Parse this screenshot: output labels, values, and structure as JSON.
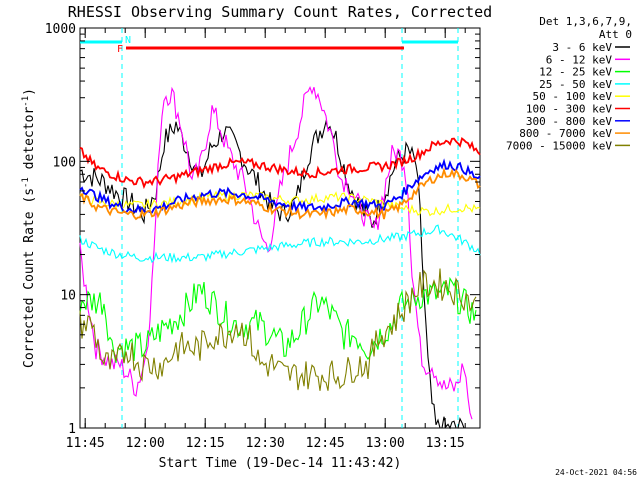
{
  "chart_data": {
    "type": "line",
    "title": "RHESSI Observing Summary Count Rates, Corrected",
    "xlabel": "Start Time (19-Dec-14 11:43:42)",
    "ylabel_prefix": "Corrected Count Rate (s",
    "ylabel_sup1": "-1",
    "ylabel_mid": " detector",
    "ylabel_sup2": "-1",
    "ylabel_suffix": ")",
    "x_unit": "minutes since 11:43:42",
    "xlim": [
      0,
      100
    ],
    "yscale": "log",
    "ylim": [
      1,
      1000
    ],
    "x_ticks": [
      {
        "pos": 1.3,
        "label": "11:45"
      },
      {
        "pos": 16.3,
        "label": "12:00"
      },
      {
        "pos": 31.3,
        "label": "12:15"
      },
      {
        "pos": 46.3,
        "label": "12:30"
      },
      {
        "pos": 61.3,
        "label": "12:45"
      },
      {
        "pos": 76.3,
        "label": "13:00"
      },
      {
        "pos": 91.3,
        "label": "13:15"
      }
    ],
    "y_ticks": [
      {
        "value": 1,
        "label": "1"
      },
      {
        "value": 10,
        "label": "10"
      },
      {
        "value": 100,
        "label": "100"
      },
      {
        "value": 1000,
        "label": "1000"
      }
    ],
    "legend": {
      "header1": "Det 1,3,6,7,9,",
      "header2": "Att 0",
      "placement": "right, outside plot"
    },
    "series": [
      {
        "name": "3 - 6 keV",
        "color": "#000000",
        "x": [
          0,
          6,
          10,
          13,
          16,
          19,
          21,
          24,
          27,
          30,
          33,
          36,
          39,
          42,
          45,
          48,
          51,
          54,
          57,
          60,
          62,
          64,
          67,
          70,
          73,
          76,
          79,
          82,
          84,
          85,
          86,
          87,
          88,
          89,
          91,
          93,
          95,
          97
        ],
        "y": [
          85,
          70,
          55,
          48,
          40,
          60,
          140,
          190,
          120,
          75,
          130,
          170,
          130,
          90,
          65,
          45,
          40,
          50,
          110,
          170,
          210,
          150,
          70,
          45,
          35,
          55,
          100,
          120,
          95,
          40,
          10,
          3,
          1.5,
          1,
          1,
          1,
          1,
          1
        ]
      },
      {
        "name": "6 - 12 keV",
        "color": "#ff00ff",
        "x": [
          0,
          4,
          8,
          10,
          12,
          14,
          16,
          17,
          18,
          19,
          20,
          21,
          23,
          25,
          27,
          28,
          30,
          33,
          35,
          37,
          39,
          41,
          43,
          45,
          47,
          48,
          49,
          50,
          52,
          54,
          56,
          58,
          60,
          62,
          64,
          65,
          67,
          69,
          71,
          73,
          74,
          76,
          78,
          79,
          81,
          82,
          83,
          84,
          85,
          86,
          88,
          91,
          94,
          96,
          98
        ],
        "y": [
          20,
          4,
          3,
          3,
          2.5,
          2,
          3,
          5,
          12,
          40,
          160,
          320,
          320,
          200,
          110,
          70,
          90,
          240,
          180,
          120,
          90,
          70,
          45,
          28,
          22,
          30,
          40,
          60,
          100,
          160,
          260,
          390,
          300,
          190,
          120,
          75,
          70,
          50,
          40,
          30,
          32,
          60,
          110,
          120,
          100,
          60,
          15,
          8,
          4,
          3,
          3,
          2,
          2,
          3,
          1
        ]
      },
      {
        "name": "12 - 25 keV",
        "color": "#00ff00",
        "x": [
          0,
          3,
          6,
          8,
          10,
          13,
          16,
          19,
          22,
          25,
          28,
          30,
          33,
          36,
          39,
          42,
          45,
          48,
          51,
          54,
          57,
          60,
          63,
          66,
          69,
          72,
          75,
          78,
          80,
          83,
          85,
          88,
          91,
          93,
          95,
          97,
          99
        ],
        "y": [
          9,
          9,
          9,
          4,
          4,
          4,
          4,
          5,
          6,
          7,
          9,
          11,
          9,
          7,
          6,
          6,
          6,
          5,
          4,
          5,
          7,
          9,
          7,
          5,
          5,
          4,
          5,
          6,
          8,
          9,
          10,
          10,
          10,
          11,
          9,
          8,
          7
        ]
      },
      {
        "name": "25 - 50 keV",
        "color": "#00ffff",
        "x": [
          0,
          5,
          10,
          15,
          20,
          25,
          30,
          35,
          40,
          45,
          50,
          55,
          60,
          65,
          70,
          75,
          80,
          85,
          90,
          95,
          100
        ],
        "y": [
          26,
          22,
          20,
          19,
          19,
          19,
          19,
          20,
          21,
          22,
          23,
          24,
          25,
          25,
          25,
          26,
          27,
          29,
          31,
          26,
          21
        ]
      },
      {
        "name": "50 - 100 keV",
        "color": "#ffff00",
        "x": [
          0,
          4,
          8,
          12,
          16,
          20,
          24,
          28,
          32,
          36,
          40,
          44,
          48,
          52,
          56,
          60,
          64,
          68,
          72,
          76,
          80,
          84,
          88,
          92,
          96,
          100
        ],
        "y": [
          55,
          50,
          48,
          47,
          47,
          48,
          50,
          52,
          54,
          55,
          56,
          55,
          53,
          51,
          51,
          53,
          54,
          53,
          51,
          48,
          45,
          43,
          42,
          44,
          45,
          43
        ]
      },
      {
        "name": "100 - 300 keV",
        "color": "#ff0000",
        "x": [
          0,
          4,
          8,
          12,
          16,
          20,
          24,
          28,
          32,
          36,
          40,
          44,
          48,
          52,
          56,
          60,
          64,
          68,
          72,
          76,
          80,
          84,
          88,
          92,
          96,
          100
        ],
        "y": [
          120,
          90,
          80,
          72,
          70,
          72,
          76,
          82,
          88,
          95,
          98,
          95,
          90,
          85,
          82,
          82,
          86,
          88,
          90,
          92,
          98,
          110,
          130,
          145,
          140,
          115
        ]
      },
      {
        "name": "300 - 800 keV",
        "color": "#0000ff",
        "x": [
          0,
          4,
          8,
          12,
          16,
          20,
          24,
          28,
          32,
          36,
          40,
          44,
          48,
          52,
          56,
          60,
          64,
          68,
          72,
          76,
          80,
          84,
          88,
          92,
          96,
          100
        ],
        "y": [
          65,
          55,
          48,
          44,
          43,
          45,
          50,
          54,
          57,
          58,
          57,
          54,
          50,
          47,
          45,
          45,
          48,
          50,
          48,
          46,
          55,
          72,
          88,
          95,
          88,
          72
        ]
      },
      {
        "name": "800 - 7000 keV",
        "color": "#ff8c00",
        "x": [
          0,
          4,
          8,
          12,
          16,
          20,
          24,
          28,
          32,
          36,
          40,
          44,
          48,
          52,
          56,
          60,
          64,
          68,
          72,
          76,
          80,
          84,
          88,
          92,
          96,
          100
        ],
        "y": [
          55,
          46,
          42,
          40,
          40,
          42,
          46,
          49,
          51,
          52,
          51,
          48,
          44,
          42,
          40,
          40,
          42,
          44,
          42,
          40,
          46,
          60,
          74,
          82,
          78,
          66
        ]
      },
      {
        "name": "7000 - 15000 keV",
        "color": "#808000",
        "x": [
          0,
          3,
          6,
          9,
          12,
          15,
          18,
          21,
          24,
          27,
          30,
          33,
          36,
          39,
          42,
          45,
          48,
          51,
          54,
          57,
          60,
          63,
          66,
          69,
          72,
          75,
          78,
          81,
          84,
          87,
          90,
          93,
          96,
          99
        ],
        "y": [
          6,
          6,
          3,
          3,
          4,
          3,
          3,
          3,
          4,
          4,
          4,
          5,
          5,
          6,
          5,
          3,
          3,
          2.5,
          2.5,
          2.5,
          2.5,
          2.5,
          2.5,
          3,
          3,
          5,
          6,
          8,
          11,
          12,
          12,
          11,
          10,
          8
        ]
      }
    ],
    "annotations": {
      "attenuator_label": "N",
      "flare_label": "F",
      "night_bar_color": "#00ffff",
      "flare_bar_color": "#ff0000",
      "night_intervals": [
        [
          0,
          10.5
        ],
        [
          80.5,
          94.5
        ]
      ],
      "flare_interval": [
        11.5,
        81
      ],
      "guide_lines": [
        10.5,
        80.5,
        94.5
      ]
    }
  },
  "footer": {
    "timestamp": "24-Oct-2021 04:56"
  }
}
